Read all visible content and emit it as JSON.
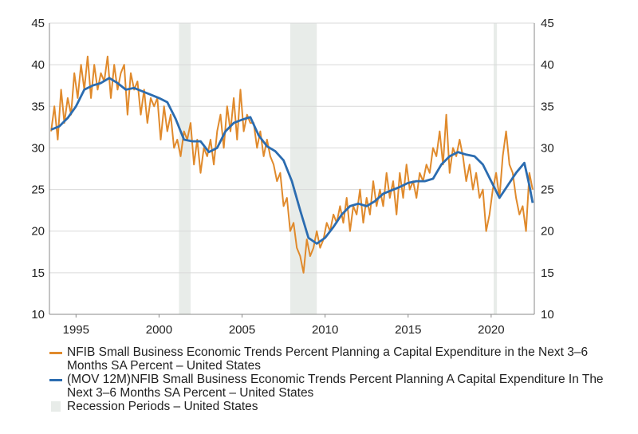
{
  "colors": {
    "series_monthly": "#e08a2c",
    "series_ma": "#2b6cb0",
    "recession": "#e8ece9",
    "grid": "#d9d9d9",
    "axis": "#888888"
  },
  "legend": {
    "item1": "NFIB Small Business Economic Trends Percent Planning a Capital Expenditure in the Next 3–6 Months SA Percent – United States",
    "item2": "(MOV 12M)NFIB Small Business Economic Trends Percent Planning A Capital Expenditure In The Next 3–6 Months SA Percent – United States",
    "item3": "Recession Periods – United States"
  },
  "chart_data": {
    "type": "line",
    "title": "",
    "xlabel": "",
    "ylabel": "",
    "xlim": [
      1993.4,
      2022.6
    ],
    "ylim": [
      10,
      45
    ],
    "x_ticks": [
      1995,
      2000,
      2005,
      2010,
      2015,
      2020
    ],
    "y_ticks": [
      10,
      15,
      20,
      25,
      30,
      35,
      40,
      45
    ],
    "grid": true,
    "recessions": [
      [
        2001.2,
        2001.9
      ],
      [
        2007.9,
        2009.5
      ],
      [
        2020.15,
        2020.35
      ]
    ],
    "series": [
      {
        "name": "NFIB Small Business Economic Trends Percent Planning a Capital Expenditure in the Next 3–6 Months SA Percent – United States",
        "x": [
          1993.5,
          1993.7,
          1993.9,
          1994.1,
          1994.3,
          1994.5,
          1994.7,
          1994.9,
          1995.1,
          1995.3,
          1995.5,
          1995.7,
          1995.9,
          1996.1,
          1996.3,
          1996.5,
          1996.7,
          1996.9,
          1997.1,
          1997.3,
          1997.5,
          1997.7,
          1997.9,
          1998.1,
          1998.3,
          1998.5,
          1998.7,
          1998.9,
          1999.1,
          1999.3,
          1999.5,
          1999.7,
          1999.9,
          2000.1,
          2000.3,
          2000.5,
          2000.7,
          2000.9,
          2001.1,
          2001.3,
          2001.5,
          2001.7,
          2001.9,
          2002.1,
          2002.3,
          2002.5,
          2002.7,
          2002.9,
          2003.1,
          2003.3,
          2003.5,
          2003.7,
          2003.9,
          2004.1,
          2004.3,
          2004.5,
          2004.7,
          2004.9,
          2005.1,
          2005.3,
          2005.5,
          2005.7,
          2005.9,
          2006.1,
          2006.3,
          2006.5,
          2006.7,
          2006.9,
          2007.1,
          2007.3,
          2007.5,
          2007.7,
          2007.9,
          2008.1,
          2008.3,
          2008.5,
          2008.7,
          2008.9,
          2009.1,
          2009.3,
          2009.5,
          2009.7,
          2009.9,
          2010.1,
          2010.3,
          2010.5,
          2010.7,
          2010.9,
          2011.1,
          2011.3,
          2011.5,
          2011.7,
          2011.9,
          2012.1,
          2012.3,
          2012.5,
          2012.7,
          2012.9,
          2013.1,
          2013.3,
          2013.5,
          2013.7,
          2013.9,
          2014.1,
          2014.3,
          2014.5,
          2014.7,
          2014.9,
          2015.1,
          2015.3,
          2015.5,
          2015.7,
          2015.9,
          2016.1,
          2016.3,
          2016.5,
          2016.7,
          2016.9,
          2017.1,
          2017.3,
          2017.5,
          2017.7,
          2017.9,
          2018.1,
          2018.3,
          2018.5,
          2018.7,
          2018.9,
          2019.1,
          2019.3,
          2019.5,
          2019.7,
          2019.9,
          2020.1,
          2020.3,
          2020.5,
          2020.7,
          2020.9,
          2021.1,
          2021.3,
          2021.5,
          2021.7,
          2021.9,
          2022.1,
          2022.3,
          2022.5
        ],
        "values": [
          32,
          35,
          31,
          37,
          33,
          36,
          34,
          39,
          36,
          40,
          37,
          41,
          36,
          40,
          37,
          39,
          38,
          41,
          36,
          40,
          37,
          39,
          40,
          34,
          39,
          37,
          38,
          34,
          37,
          33,
          36,
          35,
          36,
          31,
          35,
          32,
          34,
          30,
          31,
          29,
          32,
          31,
          33,
          28,
          31,
          27,
          30,
          29,
          31,
          28,
          32,
          34,
          30,
          35,
          32,
          36,
          31,
          37,
          32,
          34,
          33,
          33,
          30,
          32,
          29,
          31,
          29,
          28,
          26,
          27,
          23,
          24,
          20,
          21,
          18,
          17,
          15,
          19,
          17,
          18,
          20,
          18,
          19,
          21,
          20,
          22,
          21,
          23,
          21,
          24,
          20,
          23,
          22,
          25,
          21,
          24,
          22,
          26,
          23,
          25,
          23,
          27,
          24,
          26,
          22,
          27,
          24,
          28,
          25,
          26,
          24,
          27,
          26,
          28,
          27,
          30,
          29,
          32,
          28,
          34,
          27,
          30,
          29,
          31,
          29,
          26,
          28,
          25,
          27,
          24,
          25,
          20,
          22,
          25,
          27,
          24,
          29,
          32,
          28,
          27,
          24,
          22,
          23,
          20,
          27,
          25
        ]
      },
      {
        "name": "(MOV 12M)NFIB Small Business Economic Trends Percent Planning A Capital Expenditure In The Next 3–6 Months SA Percent – United States",
        "x": [
          1993.5,
          1994.0,
          1994.5,
          1995.0,
          1995.5,
          1996.0,
          1996.5,
          1997.0,
          1997.5,
          1998.0,
          1998.5,
          1999.0,
          1999.5,
          2000.0,
          2000.5,
          2001.0,
          2001.5,
          2002.0,
          2002.5,
          2003.0,
          2003.5,
          2004.0,
          2004.5,
          2005.0,
          2005.5,
          2006.0,
          2006.5,
          2007.0,
          2007.5,
          2008.0,
          2008.5,
          2009.0,
          2009.5,
          2010.0,
          2010.5,
          2011.0,
          2011.5,
          2012.0,
          2012.5,
          2013.0,
          2013.5,
          2014.0,
          2014.5,
          2015.0,
          2015.5,
          2016.0,
          2016.5,
          2017.0,
          2017.5,
          2018.0,
          2018.5,
          2019.0,
          2019.5,
          2020.0,
          2020.5,
          2021.0,
          2021.5,
          2022.0,
          2022.3,
          2022.5
        ],
        "values": [
          32.2,
          32.6,
          33.6,
          35.0,
          37.0,
          37.5,
          37.8,
          38.4,
          37.8,
          37.0,
          37.2,
          36.8,
          36.4,
          36.0,
          35.5,
          33.5,
          31.0,
          30.8,
          30.8,
          29.5,
          30.0,
          32.0,
          33.0,
          33.4,
          33.7,
          31.5,
          30.2,
          29.6,
          28.5,
          26.0,
          22.5,
          19.2,
          18.5,
          19.2,
          20.5,
          22.0,
          23.0,
          23.3,
          23.0,
          23.6,
          24.5,
          24.9,
          25.3,
          25.8,
          26.0,
          26.0,
          26.3,
          28.0,
          29.0,
          29.5,
          29.2,
          29.0,
          28.0,
          26.0,
          24.0,
          25.5,
          27.0,
          28.2,
          25.5,
          23.4
        ]
      }
    ]
  }
}
